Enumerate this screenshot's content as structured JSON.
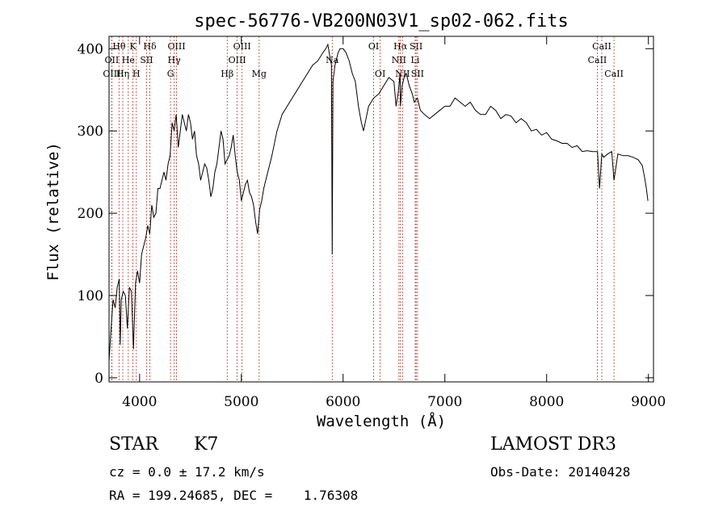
{
  "chart_data": {
    "type": "line",
    "title": "spec-56776-VB200N03V1_sp02-062.fits",
    "xlabel": "Wavelength (Å)",
    "ylabel": "Flux (relative)",
    "xlim": [
      3700,
      9050
    ],
    "ylim": [
      -5,
      415
    ],
    "xticks": [
      4000,
      5000,
      6000,
      7000,
      8000,
      9000
    ],
    "yticks": [
      0,
      100,
      200,
      300,
      400
    ],
    "series": [
      {
        "name": "flux",
        "x": [
          3700,
          3720,
          3740,
          3760,
          3780,
          3800,
          3810,
          3820,
          3840,
          3860,
          3880,
          3900,
          3920,
          3940,
          3960,
          3980,
          4000,
          4020,
          4040,
          4060,
          4080,
          4100,
          4120,
          4140,
          4160,
          4180,
          4200,
          4220,
          4240,
          4260,
          4280,
          4300,
          4320,
          4340,
          4360,
          4380,
          4400,
          4420,
          4440,
          4460,
          4480,
          4500,
          4520,
          4540,
          4560,
          4580,
          4600,
          4620,
          4640,
          4660,
          4680,
          4700,
          4720,
          4740,
          4760,
          4780,
          4800,
          4820,
          4840,
          4860,
          4880,
          4900,
          4920,
          4940,
          4960,
          4980,
          5000,
          5020,
          5040,
          5060,
          5080,
          5100,
          5120,
          5140,
          5160,
          5180,
          5200,
          5220,
          5240,
          5260,
          5280,
          5300,
          5350,
          5400,
          5450,
          5500,
          5550,
          5600,
          5650,
          5700,
          5750,
          5800,
          5830,
          5850,
          5870,
          5885,
          5893,
          5900,
          5920,
          5950,
          5970,
          6000,
          6030,
          6060,
          6090,
          6120,
          6150,
          6180,
          6200,
          6250,
          6300,
          6350,
          6400,
          6450,
          6500,
          6520,
          6540,
          6560,
          6563,
          6580,
          6600,
          6620,
          6650,
          6680,
          6700,
          6730,
          6760,
          6800,
          6850,
          6900,
          6950,
          7000,
          7050,
          7100,
          7150,
          7200,
          7250,
          7300,
          7350,
          7400,
          7450,
          7500,
          7550,
          7600,
          7650,
          7700,
          7750,
          7800,
          7850,
          7900,
          7950,
          8000,
          8050,
          8100,
          8150,
          8200,
          8250,
          8300,
          8350,
          8400,
          8450,
          8500,
          8520,
          8542,
          8560,
          8600,
          8640,
          8662,
          8700,
          8750,
          8800,
          8850,
          8900,
          8940,
          8960,
          8980,
          8995
        ],
        "values": [
          20,
          60,
          95,
          85,
          110,
          120,
          40,
          95,
          105,
          100,
          60,
          110,
          105,
          35,
          115,
          130,
          115,
          150,
          160,
          170,
          185,
          175,
          210,
          195,
          200,
          230,
          230,
          240,
          250,
          240,
          260,
          270,
          310,
          300,
          320,
          280,
          300,
          320,
          310,
          300,
          320,
          310,
          290,
          300,
          270,
          260,
          240,
          250,
          260,
          255,
          240,
          220,
          230,
          250,
          260,
          280,
          300,
          290,
          260,
          265,
          270,
          280,
          295,
          270,
          250,
          240,
          215,
          225,
          235,
          240,
          225,
          220,
          210,
          190,
          175,
          205,
          215,
          230,
          240,
          250,
          260,
          270,
          300,
          320,
          330,
          340,
          350,
          360,
          370,
          380,
          385,
          395,
          400,
          405,
          390,
          380,
          150,
          360,
          380,
          395,
          400,
          400,
          395,
          385,
          370,
          360,
          330,
          310,
          300,
          330,
          340,
          345,
          355,
          365,
          360,
          330,
          345,
          370,
          330,
          355,
          365,
          370,
          355,
          345,
          335,
          340,
          325,
          320,
          315,
          320,
          325,
          330,
          330,
          340,
          335,
          330,
          335,
          325,
          320,
          320,
          330,
          325,
          315,
          320,
          318,
          310,
          315,
          310,
          300,
          302,
          295,
          298,
          290,
          288,
          285,
          285,
          280,
          282,
          275,
          276,
          275,
          275,
          230,
          272,
          268,
          272,
          275,
          240,
          272,
          270,
          270,
          268,
          265,
          258,
          245,
          230,
          215
        ]
      }
    ],
    "line_ids": [
      {
        "name": "Hθ",
        "x": 3798,
        "row": 1
      },
      {
        "name": "OII",
        "x": 3727,
        "row": 2
      },
      {
        "name": "OIII",
        "x": 3727,
        "row": 3
      },
      {
        "name": "K",
        "x": 3934,
        "row": 1
      },
      {
        "name": "He",
        "x": 3889,
        "row": 2
      },
      {
        "name": "Hη",
        "x": 3835,
        "row": 3
      },
      {
        "name": "Hδ",
        "x": 4101,
        "row": 1
      },
      {
        "name": "SII",
        "x": 4069,
        "row": 2
      },
      {
        "name": "H",
        "x": 3968,
        "row": 3
      },
      {
        "name": "OIII",
        "x": 4363,
        "row": 1
      },
      {
        "name": "Hγ",
        "x": 4340,
        "row": 2
      },
      {
        "name": "G",
        "x": 4304,
        "row": 3
      },
      {
        "name": "OIII",
        "x": 5007,
        "row": 1
      },
      {
        "name": "OIII",
        "x": 4959,
        "row": 2
      },
      {
        "name": "Hβ",
        "x": 4861,
        "row": 3
      },
      {
        "name": "Mg",
        "x": 5175,
        "row": 3
      },
      {
        "name": "Na",
        "x": 5893,
        "row": 2
      },
      {
        "name": "OI",
        "x": 6300,
        "row": 1
      },
      {
        "name": "OI",
        "x": 6364,
        "row": 3
      },
      {
        "name": "Hα",
        "x": 6563,
        "row": 1
      },
      {
        "name": "NII",
        "x": 6548,
        "row": 2
      },
      {
        "name": "NII",
        "x": 6584,
        "row": 3
      },
      {
        "name": "SII",
        "x": 6717,
        "row": 1
      },
      {
        "name": "Li",
        "x": 6708,
        "row": 2
      },
      {
        "name": "SII",
        "x": 6731,
        "row": 3
      },
      {
        "name": "CaII",
        "x": 8542,
        "row": 1
      },
      {
        "name": "CaII",
        "x": 8498,
        "row": 2
      },
      {
        "name": "CaII",
        "x": 8662,
        "row": 3
      }
    ]
  },
  "info": {
    "class_label": "STAR",
    "subclass": "K7",
    "survey": "LAMOST DR3",
    "redshift_text": "cz = 0.0 ± 17.2 km/s",
    "obs_date_text": "Obs-Date: 20140428",
    "coords_text": "RA = 199.24685, DEC =    1.76308"
  }
}
